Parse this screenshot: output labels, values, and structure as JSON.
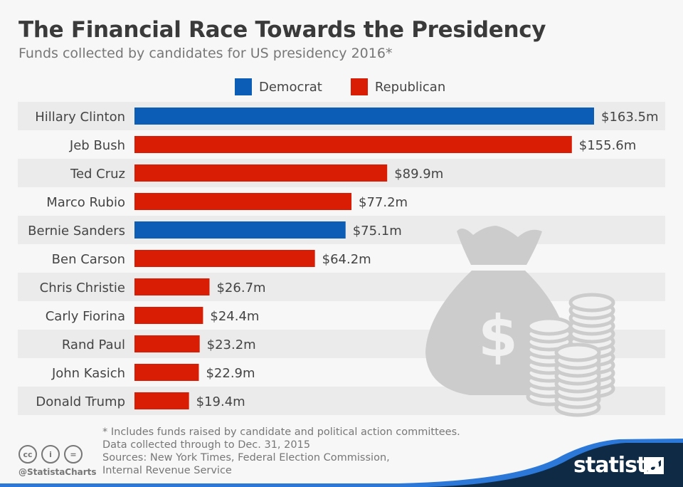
{
  "chart_data": {
    "type": "bar",
    "orientation": "horizontal",
    "title": "The Financial Race Towards the Presidency",
    "subtitle": "Funds collected by candidates for US presidency 2016*",
    "categories": [
      "Hillary Clinton",
      "Jeb Bush",
      "Ted Cruz",
      "Marco Rubio",
      "Bernie Sanders",
      "Ben Carson",
      "Chris Christie",
      "Carly Fiorina",
      "Rand Paul",
      "John Kasich",
      "Donald Trump"
    ],
    "values": [
      163.5,
      155.6,
      89.9,
      77.2,
      75.1,
      64.2,
      26.7,
      24.4,
      23.2,
      22.9,
      19.4
    ],
    "labels": [
      "$163.5m",
      "$155.6m",
      "$89.9m",
      "$77.2m",
      "$75.1m",
      "$64.2m",
      "$26.7m",
      "$24.4m",
      "$23.2m",
      "$22.9m",
      "$19.4m"
    ],
    "party": [
      "Democrat",
      "Republican",
      "Republican",
      "Republican",
      "Democrat",
      "Republican",
      "Republican",
      "Republican",
      "Republican",
      "Republican",
      "Republican"
    ],
    "legend": [
      {
        "name": "Democrat",
        "color": "#0b5db5"
      },
      {
        "name": "Republican",
        "color": "#d91c04"
      }
    ],
    "unit": "million US$",
    "xlim": [
      0,
      163.5
    ],
    "grid": false,
    "legend_position": "top"
  },
  "notes": [
    "* Includes funds raised by candidate and political action committees.",
    "Data collected through to Dec. 31, 2015",
    "Sources: New York Times, Federal Election Commission,",
    "Internal Revenue Service"
  ],
  "footer": {
    "handle": "@StatistaCharts",
    "brand": "statista",
    "cc_icons": [
      "cc-icon",
      "by-icon",
      "nd-icon"
    ],
    "cc_labels": [
      "cc",
      "i",
      "="
    ]
  },
  "decoration": "money-bag-icon"
}
